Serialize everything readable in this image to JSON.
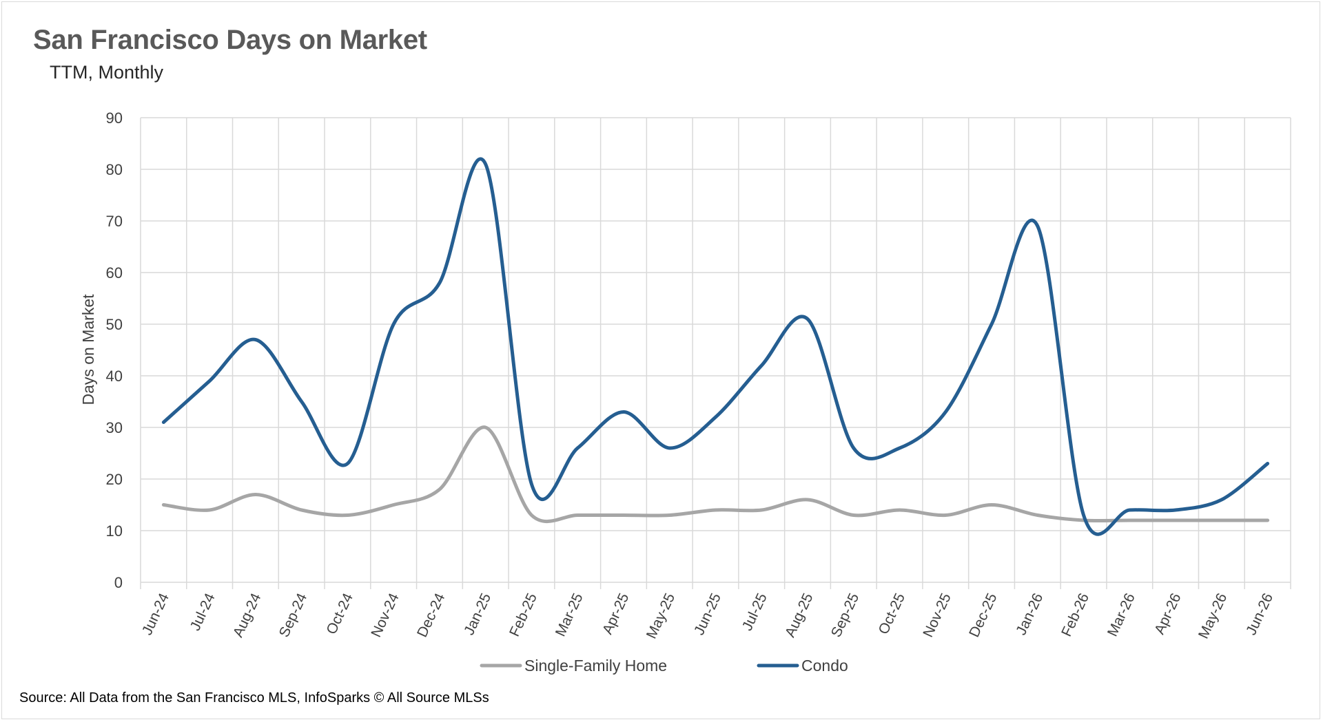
{
  "title": "San Francisco Days on Market",
  "subtitle": "TTM, Monthly",
  "source": "Source: All Data from the San Francisco MLS, InfoSparks © All Source MLSs",
  "colors": {
    "single_family": "#a6a6a6",
    "condo": "#255e91",
    "grid": "#d9d9d9"
  },
  "chart_data": {
    "type": "line",
    "ylabel": "Days on Market",
    "ylim": [
      0,
      90
    ],
    "yticks": [
      0,
      10,
      20,
      30,
      40,
      50,
      60,
      70,
      80,
      90
    ],
    "grid": true,
    "legend": "bottom",
    "categories": [
      "Jun-24",
      "Jul-24",
      "Aug-24",
      "Sep-24",
      "Oct-24",
      "Nov-24",
      "Dec-24",
      "Jan-25",
      "Feb-25",
      "Mar-25",
      "Apr-25",
      "May-25",
      "Jun-25",
      "Jul-25",
      "Aug-25",
      "Sep-25",
      "Oct-25",
      "Nov-25",
      "Dec-25",
      "Jan-26",
      "Feb-26",
      "Mar-26",
      "Apr-26",
      "May-26",
      "Jun-26"
    ],
    "series": [
      {
        "name": "Single-Family Home",
        "values": [
          15,
          14,
          17,
          14,
          13,
          15,
          18,
          30,
          13,
          13,
          13,
          13,
          14,
          14,
          16,
          13,
          14,
          13,
          15,
          13,
          12,
          12,
          12,
          12,
          12
        ]
      },
      {
        "name": "Condo",
        "values": [
          31,
          39,
          47,
          35,
          23,
          50,
          58,
          81,
          19,
          26,
          33,
          26,
          32,
          42,
          51,
          26,
          26,
          33,
          50,
          69,
          13,
          14,
          14,
          16,
          23
        ]
      }
    ]
  }
}
